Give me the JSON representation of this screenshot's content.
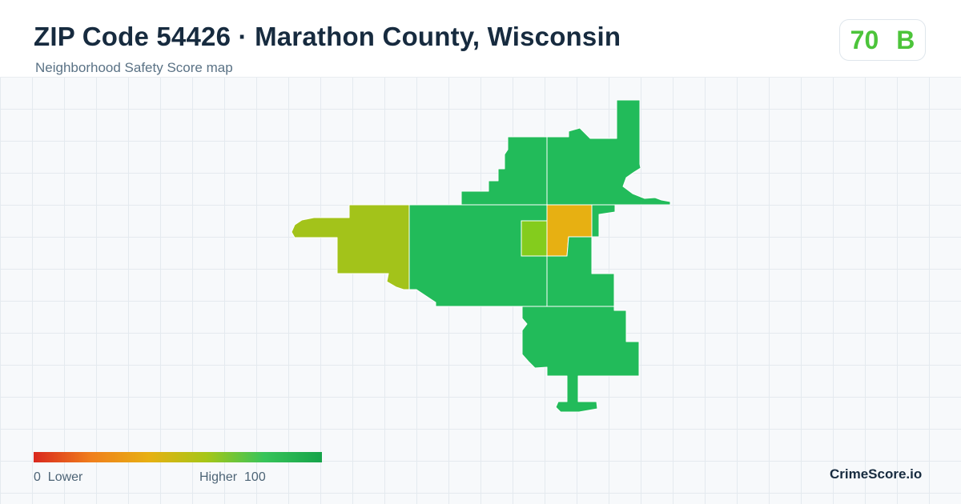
{
  "header": {
    "title": "ZIP Code 54426 · Marathon County, Wisconsin",
    "subtitle": "Neighborhood Safety Score map"
  },
  "score": {
    "value": "70",
    "grade": "B",
    "color": "#4cc43a"
  },
  "legend": {
    "min_value": "0",
    "min_label": "Lower",
    "max_label": "Higher",
    "max_value": "100",
    "gradient_colors": [
      "#d9281e",
      "#f07f1c",
      "#e7b012",
      "#a6c617",
      "#37c45a",
      "#16a34a"
    ]
  },
  "map": {
    "regions": [
      {
        "id": "north-west-block",
        "color": "#22bb5a"
      },
      {
        "id": "north-east-block",
        "color": "#22bb5a"
      },
      {
        "id": "west-block",
        "color": "#a3c31a"
      },
      {
        "id": "central-block",
        "color": "#22bb5a"
      },
      {
        "id": "small-center-block",
        "color": "#84cc1d"
      },
      {
        "id": "center-east-block",
        "color": "#e7b012"
      },
      {
        "id": "east-block",
        "color": "#22bb5a"
      },
      {
        "id": "south-block",
        "color": "#22bb5a"
      }
    ]
  },
  "brand": "CrimeScore.io"
}
